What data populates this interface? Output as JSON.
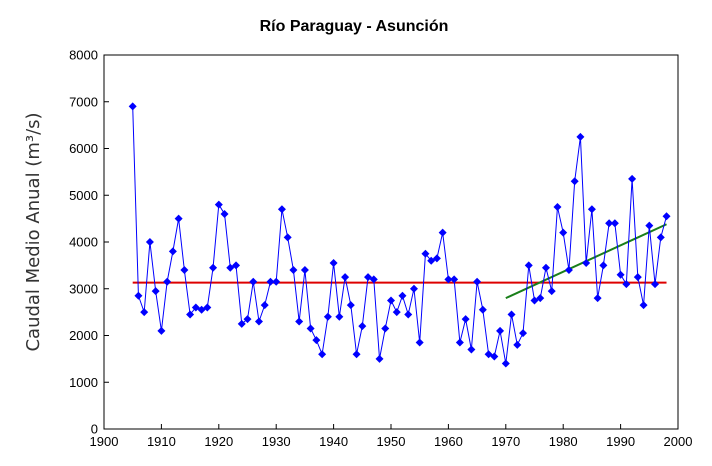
{
  "chart_data": {
    "type": "line",
    "title": "Río Paraguay -  Asunción",
    "ylabel": "Caudal Medio Anual (m³/s)",
    "xlabel": "",
    "xlim": [
      1900,
      2000
    ],
    "ylim": [
      0,
      8000
    ],
    "x_ticks": [
      1900,
      1910,
      1920,
      1930,
      1940,
      1950,
      1960,
      1970,
      1980,
      1990,
      2000
    ],
    "y_ticks": [
      0,
      1000,
      2000,
      3000,
      4000,
      5000,
      6000,
      7000,
      8000
    ],
    "grid": false,
    "series": [
      {
        "color": "#0000ff",
        "marker": "diamond",
        "x": [
          1905,
          1906,
          1907,
          1908,
          1909,
          1910,
          1911,
          1912,
          1913,
          1914,
          1915,
          1916,
          1917,
          1918,
          1919,
          1920,
          1921,
          1922,
          1923,
          1924,
          1925,
          1926,
          1927,
          1928,
          1929,
          1930,
          1931,
          1932,
          1933,
          1934,
          1935,
          1936,
          1937,
          1938,
          1939,
          1940,
          1941,
          1942,
          1943,
          1944,
          1945,
          1946,
          1947,
          1948,
          1949,
          1950,
          1951,
          1952,
          1953,
          1954,
          1955,
          1956,
          1957,
          1958,
          1959,
          1960,
          1961,
          1962,
          1963,
          1964,
          1965,
          1966,
          1967,
          1968,
          1969,
          1970,
          1971,
          1972,
          1973,
          1974,
          1975,
          1976,
          1977,
          1978,
          1979,
          1980,
          1981,
          1982,
          1983,
          1984,
          1985,
          1986,
          1987,
          1988,
          1989,
          1990,
          1991,
          1992,
          1993,
          1994,
          1995,
          1996,
          1997,
          1998
        ],
        "values": [
          6900,
          2850,
          2500,
          4000,
          2950,
          2100,
          3150,
          3800,
          4500,
          3400,
          2450,
          2600,
          2550,
          2600,
          3450,
          4800,
          4600,
          3450,
          3500,
          2250,
          2350,
          3150,
          2300,
          2650,
          3150,
          3150,
          4700,
          4100,
          3400,
          2300,
          3400,
          2150,
          1900,
          1600,
          2400,
          3550,
          2400,
          3250,
          2650,
          1600,
          2200,
          3250,
          3200,
          1500,
          2150,
          2750,
          2500,
          2850,
          2450,
          3000,
          1850,
          3750,
          3600,
          3650,
          4200,
          3200,
          3200,
          1850,
          2350,
          1700,
          3150,
          2550,
          1600,
          1550,
          2100,
          1400,
          2450,
          1800,
          2050,
          3500,
          2750,
          2800,
          3450,
          2950,
          4750,
          4200,
          3400,
          5300,
          6250,
          3550,
          4700,
          2800,
          3500,
          4400,
          4400,
          3300,
          3100,
          5350,
          3250,
          2650,
          4350,
          3100,
          4100,
          4550
        ]
      }
    ],
    "reference_lines": [
      {
        "color": "#dd0000",
        "x": [
          1905,
          1998
        ],
        "y": [
          3130,
          3130
        ]
      },
      {
        "color": "#1a7f1a",
        "x": [
          1970,
          1998
        ],
        "y": [
          2800,
          4380
        ]
      }
    ]
  }
}
